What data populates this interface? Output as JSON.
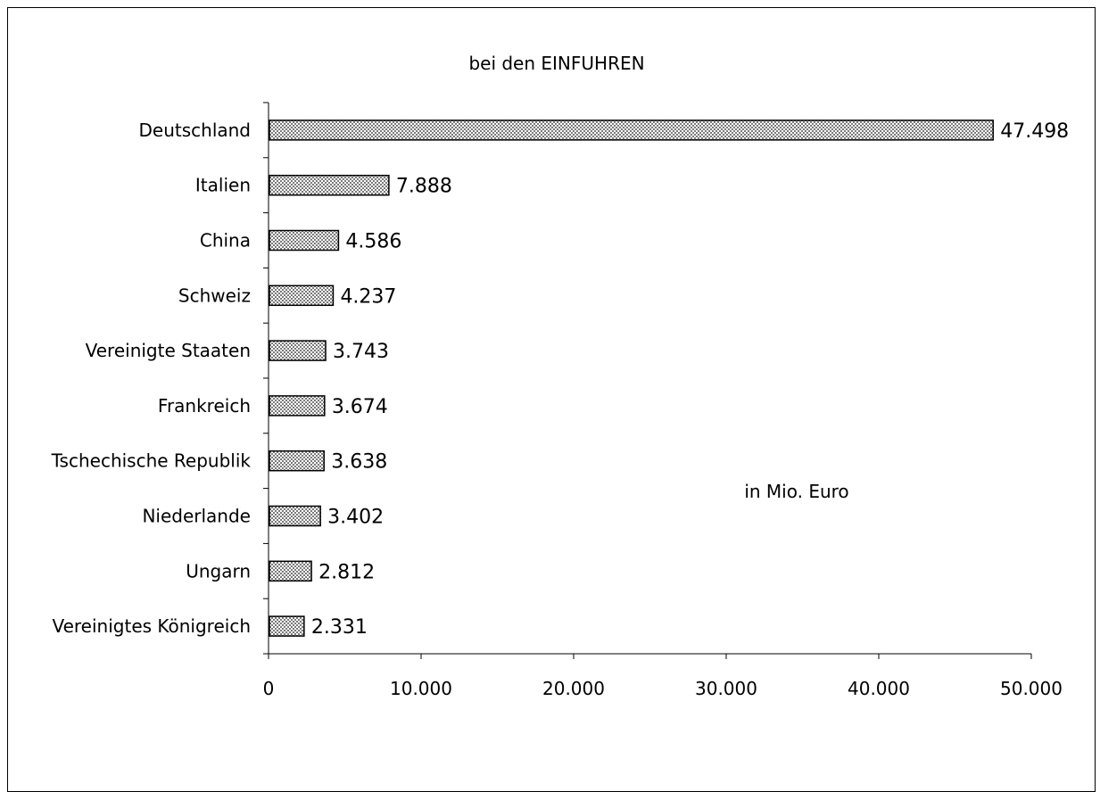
{
  "chart_data": {
    "type": "bar",
    "orientation": "horizontal",
    "title": "bei den EINFUHREN",
    "annotation": "in Mio. Euro",
    "categories": [
      "Deutschland",
      "Italien",
      "China",
      "Schweiz",
      "Vereinigte Staaten",
      "Frankreich",
      "Tschechische Republik",
      "Niederlande",
      "Ungarn",
      "Vereinigtes Königreich"
    ],
    "values": [
      47498,
      7888,
      4586,
      4237,
      3743,
      3674,
      3638,
      3402,
      2812,
      2331
    ],
    "value_labels": [
      "47.498",
      "7.888",
      "4.586",
      "4.237",
      "3.743",
      "3.674",
      "3.638",
      "3.402",
      "2.812",
      "2.331"
    ],
    "xlim": [
      0,
      50000
    ],
    "x_ticks": [
      0,
      10000,
      20000,
      30000,
      40000,
      50000
    ],
    "x_tick_labels": [
      "0",
      "10.000",
      "20.000",
      "30.000",
      "40.000",
      "50.000"
    ],
    "grid": false,
    "legend": "none",
    "bar_fill_pattern": "crosshatch",
    "colors": {
      "bar_fill": "#d0d0d0",
      "bar_stroke": "#000000",
      "text": "#000000"
    }
  }
}
